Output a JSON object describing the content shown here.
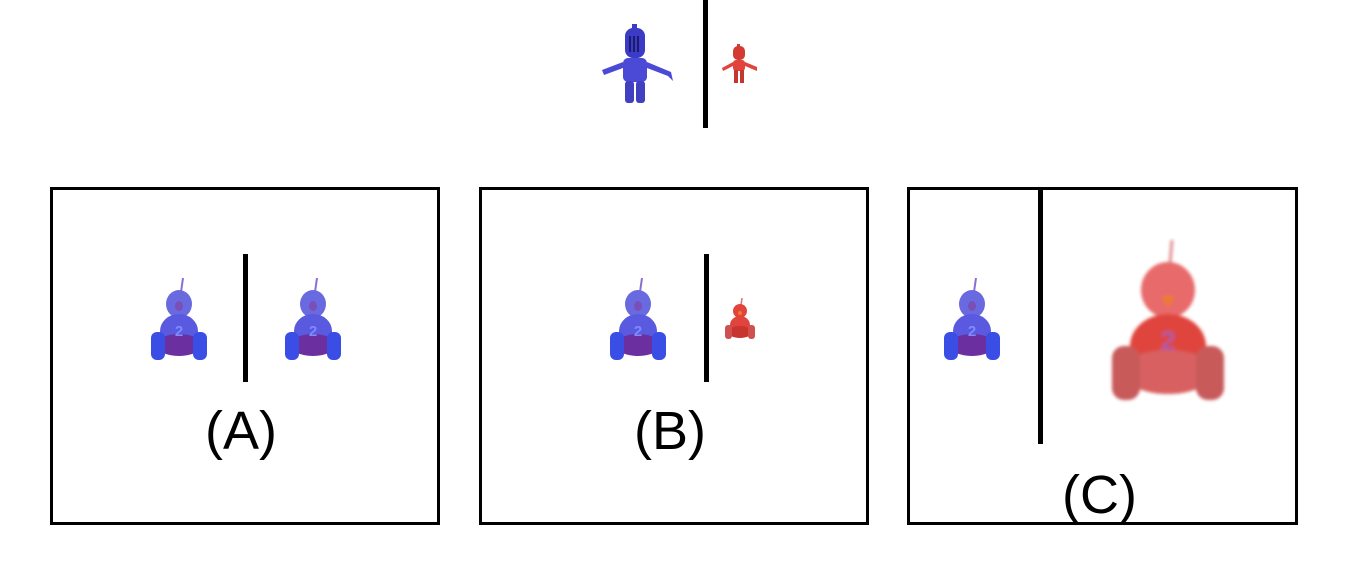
{
  "panels": [
    {
      "label": "(A)"
    },
    {
      "label": "(B)"
    },
    {
      "label": "(C)"
    }
  ],
  "icons": {
    "knight": "knight-figure-icon",
    "small_figure": "small-red-figure-icon",
    "robot": "bird-robot-icon"
  },
  "robot_number": "2",
  "colors": {
    "blue": "#4a4ad6",
    "purple": "#6b2fa0",
    "red": "#e0443c",
    "orange": "#f07a2a",
    "divider": "#000000"
  }
}
